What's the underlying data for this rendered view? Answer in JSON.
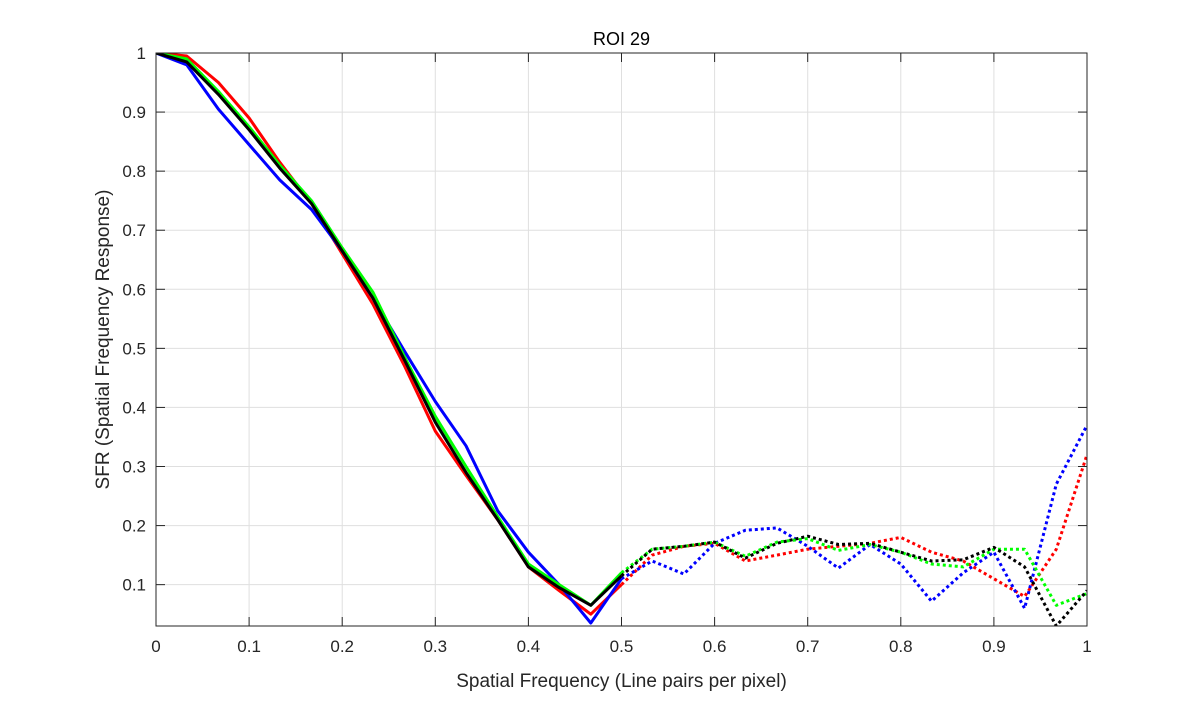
{
  "chart_data": {
    "type": "line",
    "title": "ROI 29",
    "xlabel": "Spatial Frequency (Line pairs per pixel)",
    "ylabel": "SFR (Spatial Frequency Response)",
    "xlim": [
      0,
      1
    ],
    "ylim": [
      0.03,
      1
    ],
    "grid": true,
    "x_ticks": [
      0,
      0.1,
      0.2,
      0.3,
      0.4,
      0.5,
      0.6,
      0.7,
      0.8,
      0.9,
      1
    ],
    "x_tick_labels": [
      "0",
      "0.1",
      "0.2",
      "0.3",
      "0.4",
      "0.5",
      "0.6",
      "0.7",
      "0.8",
      "0.9",
      "1"
    ],
    "y_ticks": [
      0.1,
      0.2,
      0.3,
      0.4,
      0.5,
      0.6,
      0.7,
      0.8,
      0.9,
      1
    ],
    "y_tick_labels": [
      "0.1",
      "0.2",
      "0.3",
      "0.4",
      "0.5",
      "0.6",
      "0.7",
      "0.8",
      "0.9",
      "1"
    ],
    "series": [
      {
        "name": "red",
        "color": "#ff0000",
        "style": "solid",
        "points": [
          [
            0,
            1
          ],
          [
            0.033,
            0.995
          ],
          [
            0.067,
            0.95
          ],
          [
            0.1,
            0.89
          ],
          [
            0.133,
            0.815
          ],
          [
            0.167,
            0.745
          ],
          [
            0.2,
            0.66
          ],
          [
            0.233,
            0.575
          ],
          [
            0.267,
            0.47
          ],
          [
            0.3,
            0.36
          ],
          [
            0.333,
            0.285
          ],
          [
            0.367,
            0.21
          ],
          [
            0.4,
            0.13
          ],
          [
            0.433,
            0.09
          ],
          [
            0.467,
            0.05
          ],
          [
            0.5,
            0.1
          ]
        ]
      },
      {
        "name": "red-dotted",
        "color": "#ff0000",
        "style": "dotted",
        "points": [
          [
            0.5,
            0.1
          ],
          [
            0.533,
            0.15
          ],
          [
            0.567,
            0.165
          ],
          [
            0.6,
            0.17
          ],
          [
            0.633,
            0.14
          ],
          [
            0.667,
            0.15
          ],
          [
            0.7,
            0.16
          ],
          [
            0.733,
            0.165
          ],
          [
            0.767,
            0.17
          ],
          [
            0.8,
            0.18
          ],
          [
            0.833,
            0.155
          ],
          [
            0.867,
            0.14
          ],
          [
            0.9,
            0.11
          ],
          [
            0.933,
            0.08
          ],
          [
            0.967,
            0.16
          ],
          [
            1,
            0.32
          ]
        ]
      },
      {
        "name": "blue",
        "color": "#0000ff",
        "style": "solid",
        "points": [
          [
            0,
            1
          ],
          [
            0.033,
            0.98
          ],
          [
            0.067,
            0.905
          ],
          [
            0.1,
            0.845
          ],
          [
            0.133,
            0.785
          ],
          [
            0.167,
            0.735
          ],
          [
            0.2,
            0.665
          ],
          [
            0.233,
            0.585
          ],
          [
            0.267,
            0.495
          ],
          [
            0.3,
            0.41
          ],
          [
            0.333,
            0.335
          ],
          [
            0.367,
            0.225
          ],
          [
            0.4,
            0.155
          ],
          [
            0.433,
            0.1
          ],
          [
            0.467,
            0.035
          ],
          [
            0.5,
            0.11
          ]
        ]
      },
      {
        "name": "blue-dotted",
        "color": "#0000ff",
        "style": "dotted",
        "points": [
          [
            0.5,
            0.11
          ],
          [
            0.533,
            0.14
          ],
          [
            0.567,
            0.118
          ],
          [
            0.6,
            0.17
          ],
          [
            0.633,
            0.192
          ],
          [
            0.667,
            0.196
          ],
          [
            0.7,
            0.165
          ],
          [
            0.733,
            0.128
          ],
          [
            0.767,
            0.168
          ],
          [
            0.8,
            0.135
          ],
          [
            0.833,
            0.072
          ],
          [
            0.867,
            0.12
          ],
          [
            0.9,
            0.155
          ],
          [
            0.933,
            0.06
          ],
          [
            0.967,
            0.27
          ],
          [
            1,
            0.37
          ]
        ]
      },
      {
        "name": "green",
        "color": "#00ff00",
        "style": "solid",
        "points": [
          [
            0,
            1
          ],
          [
            0.033,
            0.99
          ],
          [
            0.067,
            0.935
          ],
          [
            0.1,
            0.875
          ],
          [
            0.133,
            0.81
          ],
          [
            0.167,
            0.75
          ],
          [
            0.2,
            0.67
          ],
          [
            0.233,
            0.595
          ],
          [
            0.267,
            0.485
          ],
          [
            0.3,
            0.385
          ],
          [
            0.333,
            0.3
          ],
          [
            0.367,
            0.215
          ],
          [
            0.4,
            0.135
          ],
          [
            0.433,
            0.1
          ],
          [
            0.467,
            0.065
          ],
          [
            0.5,
            0.12
          ]
        ]
      },
      {
        "name": "green-dotted",
        "color": "#00ff00",
        "style": "dotted",
        "points": [
          [
            0.5,
            0.12
          ],
          [
            0.533,
            0.16
          ],
          [
            0.567,
            0.165
          ],
          [
            0.6,
            0.172
          ],
          [
            0.633,
            0.148
          ],
          [
            0.667,
            0.172
          ],
          [
            0.7,
            0.178
          ],
          [
            0.733,
            0.158
          ],
          [
            0.767,
            0.168
          ],
          [
            0.8,
            0.155
          ],
          [
            0.833,
            0.135
          ],
          [
            0.867,
            0.13
          ],
          [
            0.9,
            0.16
          ],
          [
            0.933,
            0.16
          ],
          [
            0.967,
            0.065
          ],
          [
            1,
            0.085
          ]
        ]
      },
      {
        "name": "black",
        "color": "#000000",
        "style": "solid",
        "points": [
          [
            0,
            1
          ],
          [
            0.033,
            0.985
          ],
          [
            0.067,
            0.93
          ],
          [
            0.1,
            0.87
          ],
          [
            0.133,
            0.805
          ],
          [
            0.167,
            0.745
          ],
          [
            0.2,
            0.665
          ],
          [
            0.233,
            0.585
          ],
          [
            0.267,
            0.48
          ],
          [
            0.3,
            0.375
          ],
          [
            0.333,
            0.29
          ],
          [
            0.367,
            0.21
          ],
          [
            0.4,
            0.13
          ],
          [
            0.433,
            0.095
          ],
          [
            0.467,
            0.065
          ],
          [
            0.5,
            0.115
          ]
        ]
      },
      {
        "name": "black-dotted",
        "color": "#000000",
        "style": "dotted",
        "points": [
          [
            0.5,
            0.115
          ],
          [
            0.533,
            0.16
          ],
          [
            0.567,
            0.165
          ],
          [
            0.6,
            0.172
          ],
          [
            0.633,
            0.145
          ],
          [
            0.667,
            0.17
          ],
          [
            0.7,
            0.182
          ],
          [
            0.733,
            0.168
          ],
          [
            0.767,
            0.17
          ],
          [
            0.8,
            0.155
          ],
          [
            0.833,
            0.14
          ],
          [
            0.867,
            0.142
          ],
          [
            0.9,
            0.163
          ],
          [
            0.933,
            0.13
          ],
          [
            0.967,
            0.03
          ],
          [
            1,
            0.09
          ]
        ]
      }
    ]
  }
}
